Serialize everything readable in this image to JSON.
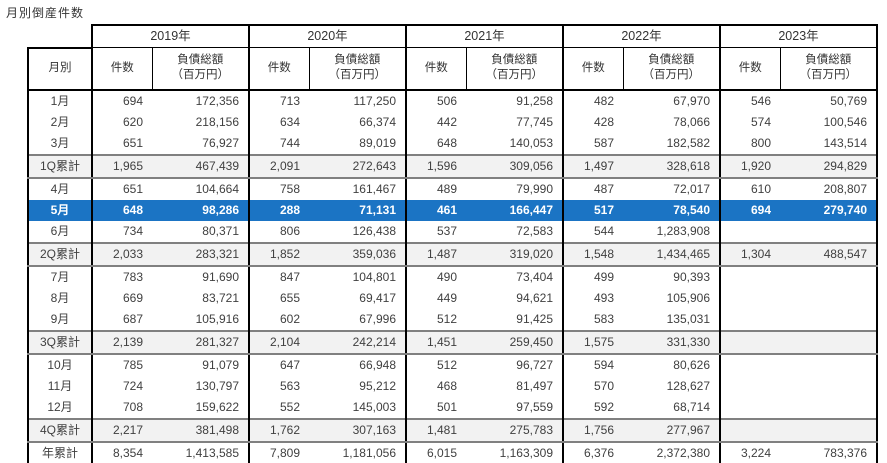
{
  "title": "月別倒産件数",
  "table": {
    "month_header": "月別",
    "count_label": "件数",
    "debt_label": "負債総額\n（百万円）"
  },
  "colors": {
    "highlight_row": "#1B74C4",
    "quarter_row_bg": "#F2F2F2",
    "quarter_border": "#808080",
    "grid": "#000000"
  },
  "chart_data": {
    "type": "table",
    "title": "月別倒産件数",
    "years": [
      "2019年",
      "2020年",
      "2021年",
      "2022年",
      "2023年"
    ],
    "columns_per_year": [
      "件数",
      "負債総額（百万円）"
    ],
    "highlighted_row": "5月",
    "rows": [
      {
        "label": "1月",
        "type": "month",
        "cells": [
          "694",
          "172,356",
          "713",
          "117,250",
          "506",
          "91,258",
          "482",
          "67,970",
          "546",
          "50,769"
        ]
      },
      {
        "label": "2月",
        "type": "month",
        "cells": [
          "620",
          "218,156",
          "634",
          "66,374",
          "442",
          "77,745",
          "428",
          "78,066",
          "574",
          "100,546"
        ]
      },
      {
        "label": "3月",
        "type": "month",
        "cells": [
          "651",
          "76,927",
          "744",
          "89,019",
          "648",
          "140,053",
          "587",
          "182,582",
          "800",
          "143,514"
        ]
      },
      {
        "label": "1Q累計",
        "type": "quarter",
        "cells": [
          "1,965",
          "467,439",
          "2,091",
          "272,643",
          "1,596",
          "309,056",
          "1,497",
          "328,618",
          "1,920",
          "294,829"
        ]
      },
      {
        "label": "4月",
        "type": "month",
        "cells": [
          "651",
          "104,664",
          "758",
          "161,467",
          "489",
          "79,990",
          "487",
          "72,017",
          "610",
          "208,807"
        ]
      },
      {
        "label": "5月",
        "type": "highlight",
        "cells": [
          "648",
          "98,286",
          "288",
          "71,131",
          "461",
          "166,447",
          "517",
          "78,540",
          "694",
          "279,740"
        ]
      },
      {
        "label": "6月",
        "type": "month",
        "cells": [
          "734",
          "80,371",
          "806",
          "126,438",
          "537",
          "72,583",
          "544",
          "1,283,908",
          "",
          ""
        ]
      },
      {
        "label": "2Q累計",
        "type": "quarter",
        "cells": [
          "2,033",
          "283,321",
          "1,852",
          "359,036",
          "1,487",
          "319,020",
          "1,548",
          "1,434,465",
          "1,304",
          "488,547"
        ]
      },
      {
        "label": "7月",
        "type": "month",
        "cells": [
          "783",
          "91,690",
          "847",
          "104,801",
          "490",
          "73,404",
          "499",
          "90,393",
          "",
          ""
        ]
      },
      {
        "label": "8月",
        "type": "month",
        "cells": [
          "669",
          "83,721",
          "655",
          "69,417",
          "449",
          "94,621",
          "493",
          "105,906",
          "",
          ""
        ]
      },
      {
        "label": "9月",
        "type": "month",
        "cells": [
          "687",
          "105,916",
          "602",
          "67,996",
          "512",
          "91,425",
          "583",
          "135,031",
          "",
          ""
        ]
      },
      {
        "label": "3Q累計",
        "type": "quarter",
        "cells": [
          "2,139",
          "281,327",
          "2,104",
          "242,214",
          "1,451",
          "259,450",
          "1,575",
          "331,330",
          "",
          ""
        ]
      },
      {
        "label": "10月",
        "type": "month",
        "cells": [
          "785",
          "91,079",
          "647",
          "66,948",
          "512",
          "96,727",
          "594",
          "80,626",
          "",
          ""
        ]
      },
      {
        "label": "11月",
        "type": "month",
        "cells": [
          "724",
          "130,797",
          "563",
          "95,212",
          "468",
          "81,497",
          "570",
          "128,627",
          "",
          ""
        ]
      },
      {
        "label": "12月",
        "type": "month",
        "cells": [
          "708",
          "159,622",
          "552",
          "145,003",
          "501",
          "97,559",
          "592",
          "68,714",
          "",
          ""
        ]
      },
      {
        "label": "4Q累計",
        "type": "quarter",
        "cells": [
          "2,217",
          "381,498",
          "1,762",
          "307,163",
          "1,481",
          "275,783",
          "1,756",
          "277,967",
          "",
          ""
        ]
      },
      {
        "label": "年累計",
        "type": "total",
        "cells": [
          "8,354",
          "1,413,585",
          "7,809",
          "1,181,056",
          "6,015",
          "1,163,309",
          "6,376",
          "2,372,380",
          "3,224",
          "783,376"
        ]
      }
    ]
  }
}
